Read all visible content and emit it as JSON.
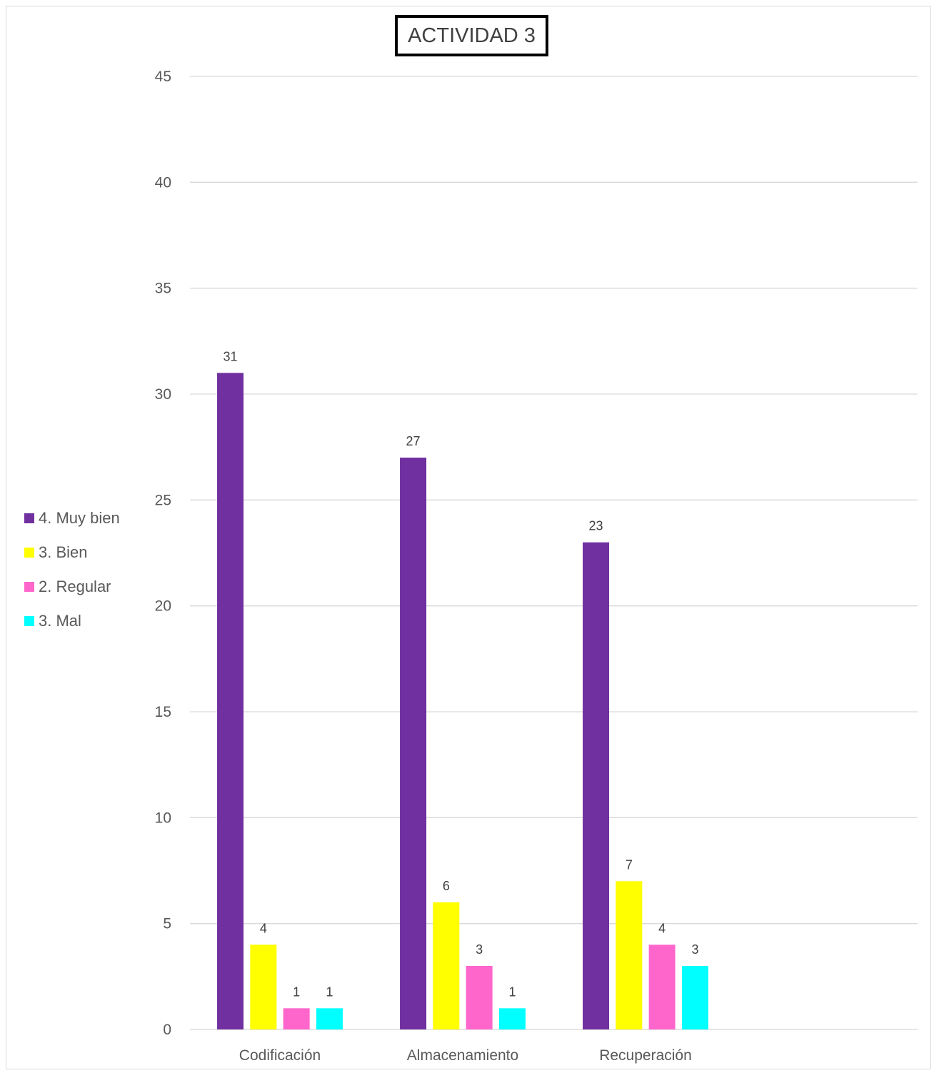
{
  "chart_data": {
    "type": "bar",
    "title": "ACTIVIDAD 3",
    "categories": [
      "Codificación",
      "Almacenamiento",
      "Recuperación"
    ],
    "series": [
      {
        "name": "4. Muy bien",
        "color": "#7030A0",
        "values": [
          31,
          27,
          23
        ]
      },
      {
        "name": "3. Bien",
        "color": "#FFFF00",
        "values": [
          4,
          6,
          7
        ]
      },
      {
        "name": "2. Regular",
        "color": "#FF66CC",
        "values": [
          1,
          3,
          4
        ]
      },
      {
        "name": "3. Mal",
        "color": "#00FFFF",
        "values": [
          1,
          1,
          3
        ]
      }
    ],
    "ylim": [
      0,
      45
    ],
    "yticks": [
      0,
      5,
      10,
      15,
      20,
      25,
      30,
      35,
      40,
      45
    ],
    "grid": true,
    "legend_position": "left",
    "data_labels": true
  }
}
